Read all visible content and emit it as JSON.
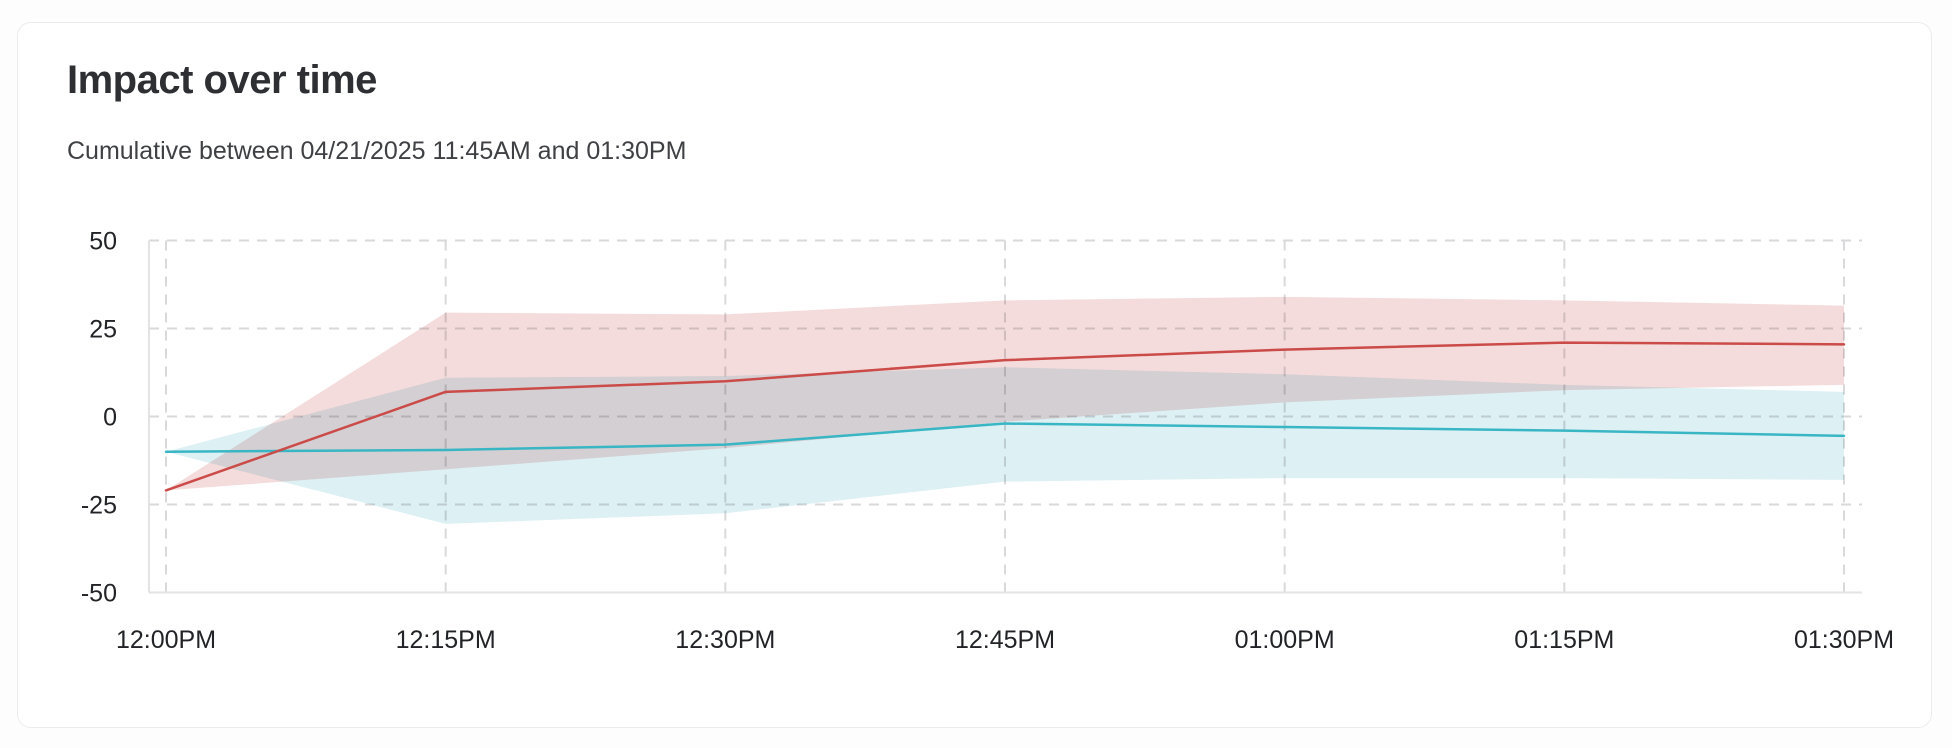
{
  "chart_data": {
    "type": "line",
    "title": "Impact over time",
    "subtitle": "Cumulative between 04/21/2025 11:45AM and 01:30PM",
    "x": [
      "12:00PM",
      "12:15PM",
      "12:30PM",
      "12:45PM",
      "01:00PM",
      "01:15PM",
      "01:30PM"
    ],
    "yticks": [
      50,
      25,
      0,
      -25,
      -50
    ],
    "ylim": [
      -50,
      50
    ],
    "grid": "dashed-both-axes",
    "legend": "none",
    "series": [
      {
        "name": "red",
        "color": "#cb4b49",
        "band_color": "#f5dcdc",
        "values": [
          -21,
          7,
          10,
          16,
          19,
          21,
          20.5
        ],
        "upper": [
          -21,
          29.5,
          29,
          33,
          34,
          33,
          31.5
        ],
        "lower": [
          -21,
          -15,
          -9,
          -1.5,
          4,
          7.5,
          9
        ]
      },
      {
        "name": "teal",
        "color": "#39b6c4",
        "band_color": "#ddf0f4",
        "values": [
          -10,
          -9.5,
          -8,
          -2,
          -3,
          -4,
          -5.5
        ],
        "upper": [
          -10,
          11,
          11.5,
          14,
          12,
          9,
          7
        ],
        "lower": [
          -10,
          -30.5,
          -27.5,
          -18.5,
          -17.5,
          -17.5,
          -18
        ]
      }
    ]
  }
}
